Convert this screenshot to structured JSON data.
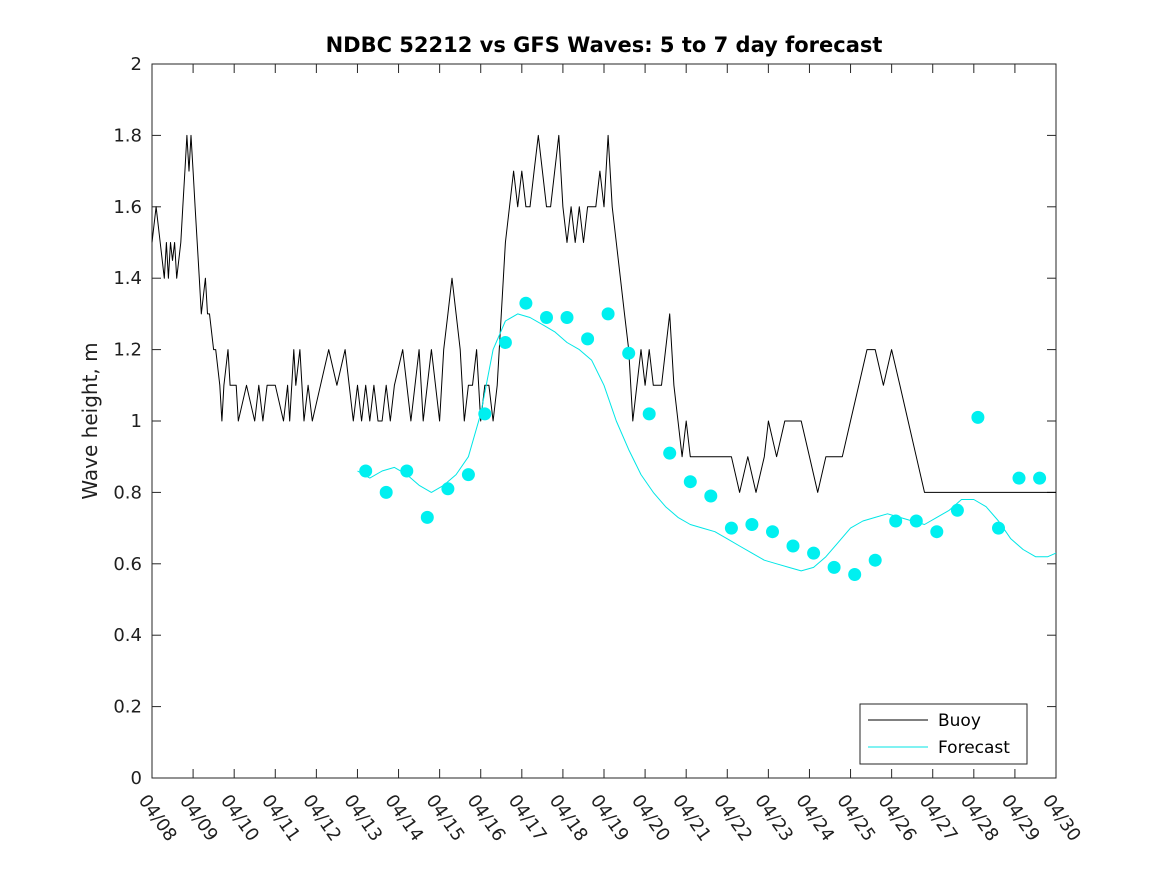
{
  "chart_data": {
    "type": "line",
    "title": "NDBC 52212 vs GFS Waves: 5 to 7 day forecast",
    "xlabel": "",
    "ylabel": "Wave height, m",
    "xlim": [
      "04/08",
      "04/30"
    ],
    "ylim": [
      0,
      2
    ],
    "x_tick_labels": [
      "04/08",
      "04/09",
      "04/10",
      "04/11",
      "04/12",
      "04/13",
      "04/14",
      "04/15",
      "04/16",
      "04/17",
      "04/18",
      "04/19",
      "04/20",
      "04/21",
      "04/22",
      "04/23",
      "04/24",
      "04/25",
      "04/26",
      "04/27",
      "04/28",
      "04/29",
      "04/30"
    ],
    "y_tick_labels": [
      "0",
      "0.2",
      "0.4",
      "0.6",
      "0.8",
      "1",
      "1.2",
      "1.4",
      "1.6",
      "1.8",
      "2"
    ],
    "y_ticks": [
      0,
      0.2,
      0.4,
      0.6,
      0.8,
      1,
      1.2,
      1.4,
      1.6,
      1.8,
      2
    ],
    "grid": false,
    "legend": {
      "position": "bottom-right",
      "entries": [
        "Buoy",
        "Forecast"
      ]
    },
    "colors": {
      "buoy": "#000000",
      "forecast": "#00e6e6",
      "markers": "#00f0f0"
    },
    "series": [
      {
        "name": "Buoy",
        "color": "#000000",
        "x": [
          0,
          0.1,
          0.2,
          0.3,
          0.35,
          0.4,
          0.45,
          0.5,
          0.55,
          0.6,
          0.7,
          0.75,
          0.8,
          0.85,
          0.9,
          0.95,
          1.0,
          1.05,
          1.1,
          1.15,
          1.2,
          1.3,
          1.35,
          1.4,
          1.5,
          1.55,
          1.65,
          1.7,
          1.75,
          1.85,
          1.9,
          2.0,
          2.05,
          2.1,
          2.3,
          2.5,
          2.6,
          2.7,
          2.8,
          3.0,
          3.2,
          3.3,
          3.35,
          3.45,
          3.5,
          3.6,
          3.7,
          3.8,
          3.9,
          4.1,
          4.3,
          4.5,
          4.7,
          4.9,
          5.0,
          5.1,
          5.2,
          5.3,
          5.4,
          5.5,
          5.6,
          5.7,
          5.8,
          5.9,
          6.1,
          6.2,
          6.3,
          6.4,
          6.5,
          6.6,
          6.7,
          6.8,
          6.9,
          7.0,
          7.1,
          7.2,
          7.3,
          7.4,
          7.5,
          7.55,
          7.6,
          7.7,
          7.8,
          7.9,
          8.0,
          8.1,
          8.2,
          8.3,
          8.4,
          8.5,
          8.6,
          8.7,
          8.8,
          8.9,
          9.0,
          9.1,
          9.2,
          9.3,
          9.4,
          9.5,
          9.6,
          9.7,
          9.8,
          9.9,
          10.0,
          10.1,
          10.2,
          10.3,
          10.4,
          10.5,
          10.6,
          10.7,
          10.8,
          10.9,
          11.0,
          11.1,
          11.2,
          11.3,
          11.4,
          11.5,
          11.6,
          11.7,
          11.8,
          11.9,
          12.0,
          12.1,
          12.2,
          12.3,
          12.4,
          12.5,
          12.6,
          12.7,
          12.8,
          12.9,
          13.0,
          13.1,
          13.2,
          13.3,
          13.5,
          13.7,
          13.9,
          14.1,
          14.3,
          14.5,
          14.7,
          14.9,
          15.0,
          15.2,
          15.4,
          15.6,
          15.8,
          16.0,
          16.2,
          16.4,
          16.6,
          16.8,
          17.0,
          17.2,
          17.4,
          17.6,
          17.8,
          18.0,
          18.2,
          18.4,
          18.6,
          18.8,
          19.0,
          19.2,
          19.4,
          19.6,
          19.8,
          20.0,
          20.2,
          20.4,
          20.6,
          20.8,
          21.0,
          21.2,
          21.4,
          21.6,
          21.8,
          22.0
        ],
        "values": [
          1.5,
          1.6,
          1.5,
          1.4,
          1.5,
          1.4,
          1.5,
          1.45,
          1.5,
          1.4,
          1.5,
          1.6,
          1.7,
          1.8,
          1.7,
          1.8,
          1.7,
          1.6,
          1.5,
          1.4,
          1.3,
          1.4,
          1.3,
          1.3,
          1.2,
          1.2,
          1.1,
          1.0,
          1.1,
          1.2,
          1.1,
          1.1,
          1.1,
          1.0,
          1.1,
          1.0,
          1.1,
          1.0,
          1.1,
          1.1,
          1.0,
          1.1,
          1.0,
          1.2,
          1.1,
          1.2,
          1.0,
          1.1,
          1.0,
          1.1,
          1.2,
          1.1,
          1.2,
          1.0,
          1.1,
          1.0,
          1.1,
          1.0,
          1.1,
          1.0,
          1.0,
          1.1,
          1.0,
          1.1,
          1.2,
          1.1,
          1.0,
          1.1,
          1.2,
          1.0,
          1.1,
          1.2,
          1.1,
          1.0,
          1.2,
          1.3,
          1.4,
          1.3,
          1.2,
          1.1,
          1.0,
          1.1,
          1.1,
          1.2,
          1.0,
          1.1,
          1.1,
          1.0,
          1.1,
          1.3,
          1.5,
          1.6,
          1.7,
          1.6,
          1.7,
          1.6,
          1.6,
          1.7,
          1.8,
          1.7,
          1.6,
          1.6,
          1.7,
          1.8,
          1.6,
          1.5,
          1.6,
          1.5,
          1.6,
          1.5,
          1.6,
          1.6,
          1.6,
          1.7,
          1.6,
          1.8,
          1.6,
          1.5,
          1.4,
          1.3,
          1.2,
          1.0,
          1.1,
          1.2,
          1.1,
          1.2,
          1.1,
          1.1,
          1.1,
          1.2,
          1.3,
          1.1,
          1.0,
          0.9,
          1.0,
          0.9,
          0.9,
          0.9,
          0.9,
          0.9,
          0.9,
          0.9,
          0.8,
          0.9,
          0.8,
          0.9,
          1.0,
          0.9,
          1.0,
          1.0,
          1.0,
          0.9,
          0.8,
          0.9,
          0.9,
          0.9,
          1.0,
          1.1,
          1.2,
          1.2,
          1.1,
          1.2,
          1.1,
          1.0,
          0.9,
          0.8,
          0.8,
          0.8,
          0.8,
          0.8,
          0.8,
          0.8,
          0.8,
          0.8,
          0.8,
          0.8,
          0.8,
          0.8,
          0.8,
          0.8,
          0.8,
          0.8
        ]
      },
      {
        "name": "Forecast",
        "color": "#00e6e6",
        "x": [
          5.0,
          5.3,
          5.6,
          5.9,
          6.2,
          6.5,
          6.8,
          7.1,
          7.4,
          7.7,
          8.0,
          8.3,
          8.6,
          8.9,
          9.2,
          9.5,
          9.8,
          10.1,
          10.4,
          10.7,
          11.0,
          11.3,
          11.6,
          11.9,
          12.2,
          12.5,
          12.8,
          13.1,
          13.4,
          13.7,
          14.0,
          14.3,
          14.6,
          14.9,
          15.2,
          15.5,
          15.8,
          16.1,
          16.4,
          16.7,
          17.0,
          17.3,
          17.6,
          17.9,
          18.2,
          18.5,
          18.8,
          19.1,
          19.4,
          19.7,
          20.0,
          20.3,
          20.6,
          20.9,
          21.2,
          21.5,
          21.8,
          22.0
        ],
        "values": [
          0.86,
          0.84,
          0.86,
          0.87,
          0.85,
          0.82,
          0.8,
          0.82,
          0.85,
          0.9,
          1.02,
          1.2,
          1.28,
          1.3,
          1.29,
          1.27,
          1.25,
          1.22,
          1.2,
          1.17,
          1.1,
          1.0,
          0.92,
          0.85,
          0.8,
          0.76,
          0.73,
          0.71,
          0.7,
          0.69,
          0.67,
          0.65,
          0.63,
          0.61,
          0.6,
          0.59,
          0.58,
          0.59,
          0.62,
          0.66,
          0.7,
          0.72,
          0.73,
          0.74,
          0.73,
          0.72,
          0.71,
          0.73,
          0.75,
          0.78,
          0.78,
          0.76,
          0.72,
          0.67,
          0.64,
          0.62,
          0.62,
          0.63
        ]
      }
    ],
    "forecast_markers": {
      "x": [
        5.2,
        5.7,
        6.2,
        6.7,
        7.2,
        7.7,
        8.1,
        8.6,
        9.1,
        9.6,
        10.1,
        10.6,
        11.1,
        11.6,
        12.1,
        12.6,
        13.1,
        13.6,
        14.1,
        14.6,
        15.1,
        15.6,
        16.1,
        16.6,
        17.1,
        17.6,
        18.1,
        18.6,
        19.1,
        19.6,
        20.1,
        20.6,
        21.1,
        21.6
      ],
      "values": [
        0.86,
        0.8,
        0.86,
        0.73,
        0.81,
        0.85,
        1.02,
        1.22,
        1.33,
        1.29,
        1.29,
        1.23,
        1.3,
        1.19,
        1.02,
        0.91,
        0.83,
        0.79,
        0.7,
        0.71,
        0.69,
        0.65,
        0.63,
        0.59,
        0.57,
        0.61,
        0.72,
        0.72,
        0.69,
        0.75,
        1.01,
        0.7,
        0.84,
        0.84
      ]
    }
  }
}
